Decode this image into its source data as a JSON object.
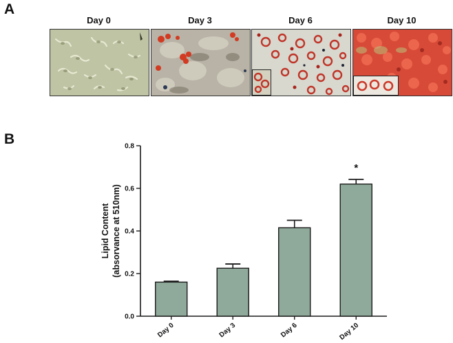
{
  "figure": {
    "panel_a_label": "A",
    "panel_b_label": "B"
  },
  "micrographs": [
    {
      "label": "Day 0"
    },
    {
      "label": "Day 3"
    },
    {
      "label": "Day 6"
    },
    {
      "label": "Day 10"
    }
  ],
  "colors": {
    "bar_fill": "#8faa9b",
    "bar_stroke": "#1a1a1a",
    "axis": "#1a1a1a"
  },
  "chart_data": {
    "type": "bar",
    "title": "",
    "categories": [
      "Day 0",
      "Day 3",
      "Day 6",
      "Day 10"
    ],
    "values": [
      0.16,
      0.225,
      0.415,
      0.62
    ],
    "errors": [
      0.004,
      0.02,
      0.035,
      0.022
    ],
    "annotations": [
      "",
      "",
      "",
      "*"
    ],
    "xlabel": "",
    "ylabel_line1": "Lipid Content",
    "ylabel_line2": "(absorvance at 510nm)",
    "ylim": [
      0.0,
      0.8
    ],
    "yticks": [
      "0.0",
      "0.2",
      "0.4",
      "0.6",
      "0.8"
    ]
  }
}
